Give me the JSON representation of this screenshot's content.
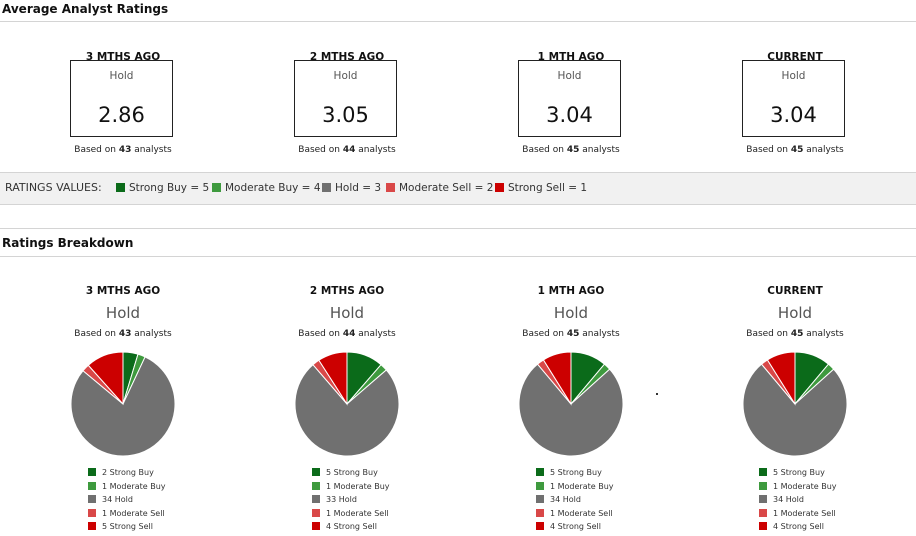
{
  "average": {
    "title": "Average Analyst Ratings",
    "periods": [
      {
        "label": "3 MTHS AGO",
        "rating": "Hold",
        "value": "2.86",
        "based_prefix": "Based on",
        "count": "43",
        "based_suffix": "analysts"
      },
      {
        "label": "2 MTHS AGO",
        "rating": "Hold",
        "value": "3.05",
        "based_prefix": "Based on",
        "count": "44",
        "based_suffix": "analysts"
      },
      {
        "label": "1 MTH AGO",
        "rating": "Hold",
        "value": "3.04",
        "based_prefix": "Based on",
        "count": "45",
        "based_suffix": "analysts"
      },
      {
        "label": "CURRENT",
        "rating": "Hold",
        "value": "3.04",
        "based_prefix": "Based on",
        "count": "45",
        "based_suffix": "analysts"
      }
    ]
  },
  "ratings_values": {
    "label": "RATINGS VALUES:",
    "items": [
      {
        "text": "Strong Buy = 5",
        "color": "#0b6b1a"
      },
      {
        "text": "Moderate Buy = 4",
        "color": "#3e9a3e"
      },
      {
        "text": "Hold = 3",
        "color": "#707070"
      },
      {
        "text": "Moderate Sell = 2",
        "color": "#d94848"
      },
      {
        "text": "Strong Sell = 1",
        "color": "#cc0000"
      }
    ]
  },
  "breakdown": {
    "title": "Ratings Breakdown"
  },
  "chart_data": [
    {
      "type": "pie",
      "title": "3 MTHS AGO",
      "subtitle": "Hold",
      "based_prefix": "Based on",
      "count": "43",
      "based_suffix": "analysts",
      "categories": [
        "Strong Buy",
        "Moderate Buy",
        "Hold",
        "Moderate Sell",
        "Strong Sell"
      ],
      "values": [
        2,
        1,
        34,
        1,
        5
      ],
      "labels": [
        "2 Strong Buy",
        "1 Moderate Buy",
        "34 Hold",
        "1 Moderate Sell",
        "5 Strong Sell"
      ],
      "colors": [
        "#0b6b1a",
        "#3e9a3e",
        "#707070",
        "#d94848",
        "#cc0000"
      ]
    },
    {
      "type": "pie",
      "title": "2 MTHS AGO",
      "subtitle": "Hold",
      "based_prefix": "Based on",
      "count": "44",
      "based_suffix": "analysts",
      "categories": [
        "Strong Buy",
        "Moderate Buy",
        "Hold",
        "Moderate Sell",
        "Strong Sell"
      ],
      "values": [
        5,
        1,
        33,
        1,
        4
      ],
      "labels": [
        "5 Strong Buy",
        "1 Moderate Buy",
        "33 Hold",
        "1 Moderate Sell",
        "4 Strong Sell"
      ],
      "colors": [
        "#0b6b1a",
        "#3e9a3e",
        "#707070",
        "#d94848",
        "#cc0000"
      ]
    },
    {
      "type": "pie",
      "title": "1 MTH AGO",
      "subtitle": "Hold",
      "based_prefix": "Based on",
      "count": "45",
      "based_suffix": "analysts",
      "categories": [
        "Strong Buy",
        "Moderate Buy",
        "Hold",
        "Moderate Sell",
        "Strong Sell"
      ],
      "values": [
        5,
        1,
        34,
        1,
        4
      ],
      "labels": [
        "5 Strong Buy",
        "1 Moderate Buy",
        "34 Hold",
        "1 Moderate Sell",
        "4 Strong Sell"
      ],
      "colors": [
        "#0b6b1a",
        "#3e9a3e",
        "#707070",
        "#d94848",
        "#cc0000"
      ]
    },
    {
      "type": "pie",
      "title": "CURRENT",
      "subtitle": "Hold",
      "based_prefix": "Based on",
      "count": "45",
      "based_suffix": "analysts",
      "categories": [
        "Strong Buy",
        "Moderate Buy",
        "Hold",
        "Moderate Sell",
        "Strong Sell"
      ],
      "values": [
        5,
        1,
        34,
        1,
        4
      ],
      "labels": [
        "5 Strong Buy",
        "1 Moderate Buy",
        "34 Hold",
        "1 Moderate Sell",
        "4 Strong Sell"
      ],
      "colors": [
        "#0b6b1a",
        "#3e9a3e",
        "#707070",
        "#d94848",
        "#cc0000"
      ]
    }
  ]
}
